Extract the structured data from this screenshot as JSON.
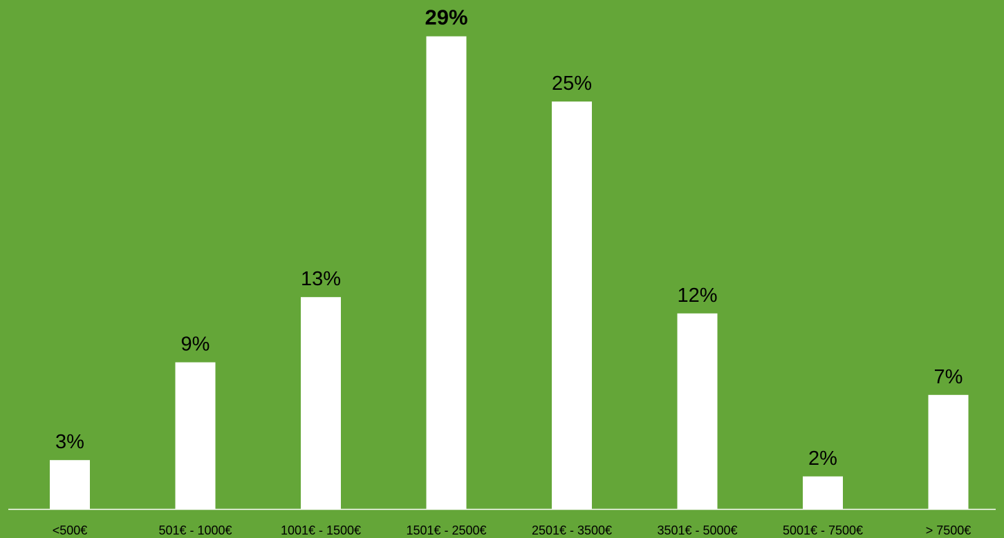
{
  "chart_data": {
    "type": "bar",
    "title": "",
    "xlabel": "",
    "ylabel": "",
    "categories": [
      "<500€",
      "501€ - 1000€",
      "1001€ - 1500€",
      "1501€ - 2500€",
      "2501€ - 3500€",
      "3501€ - 5000€",
      "5001€ - 7500€",
      "> 7500€"
    ],
    "values": [
      3,
      9,
      13,
      29,
      25,
      12,
      2,
      7
    ],
    "data_labels": [
      "3%",
      "9%",
      "13%",
      "29%",
      "25%",
      "12%",
      "2%",
      "7%"
    ],
    "highlighted_label_index": 3,
    "ylim": [
      0,
      30
    ],
    "grid": false,
    "legend": "none",
    "colors": {
      "background": "#64A638",
      "bar": "#FFFFFF",
      "axis": "#FFFFFF",
      "text": "#000000"
    }
  }
}
